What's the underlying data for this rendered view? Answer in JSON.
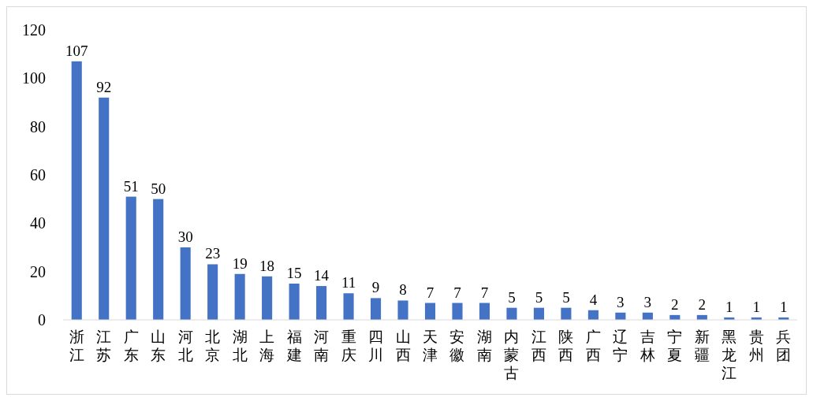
{
  "chart_data": {
    "type": "bar",
    "categories": [
      "浙江",
      "江苏",
      "广东",
      "山东",
      "河北",
      "北京",
      "湖北",
      "上海",
      "福建",
      "河南",
      "重庆",
      "四川",
      "山西",
      "天津",
      "安徽",
      "湖南",
      "内蒙古",
      "江西",
      "陕西",
      "广西",
      "辽宁",
      "吉林",
      "宁夏",
      "新疆",
      "黑龙江",
      "贵州",
      "兵团"
    ],
    "values": [
      107,
      92,
      51,
      50,
      30,
      23,
      19,
      18,
      15,
      14,
      11,
      9,
      8,
      7,
      7,
      7,
      5,
      5,
      5,
      4,
      3,
      3,
      2,
      2,
      1,
      1,
      1
    ],
    "color": "#4472c4",
    "ylim": [
      0,
      120
    ],
    "yticks": [
      0,
      20,
      40,
      60,
      80,
      100,
      120
    ],
    "grid": false,
    "data_labels": true
  }
}
